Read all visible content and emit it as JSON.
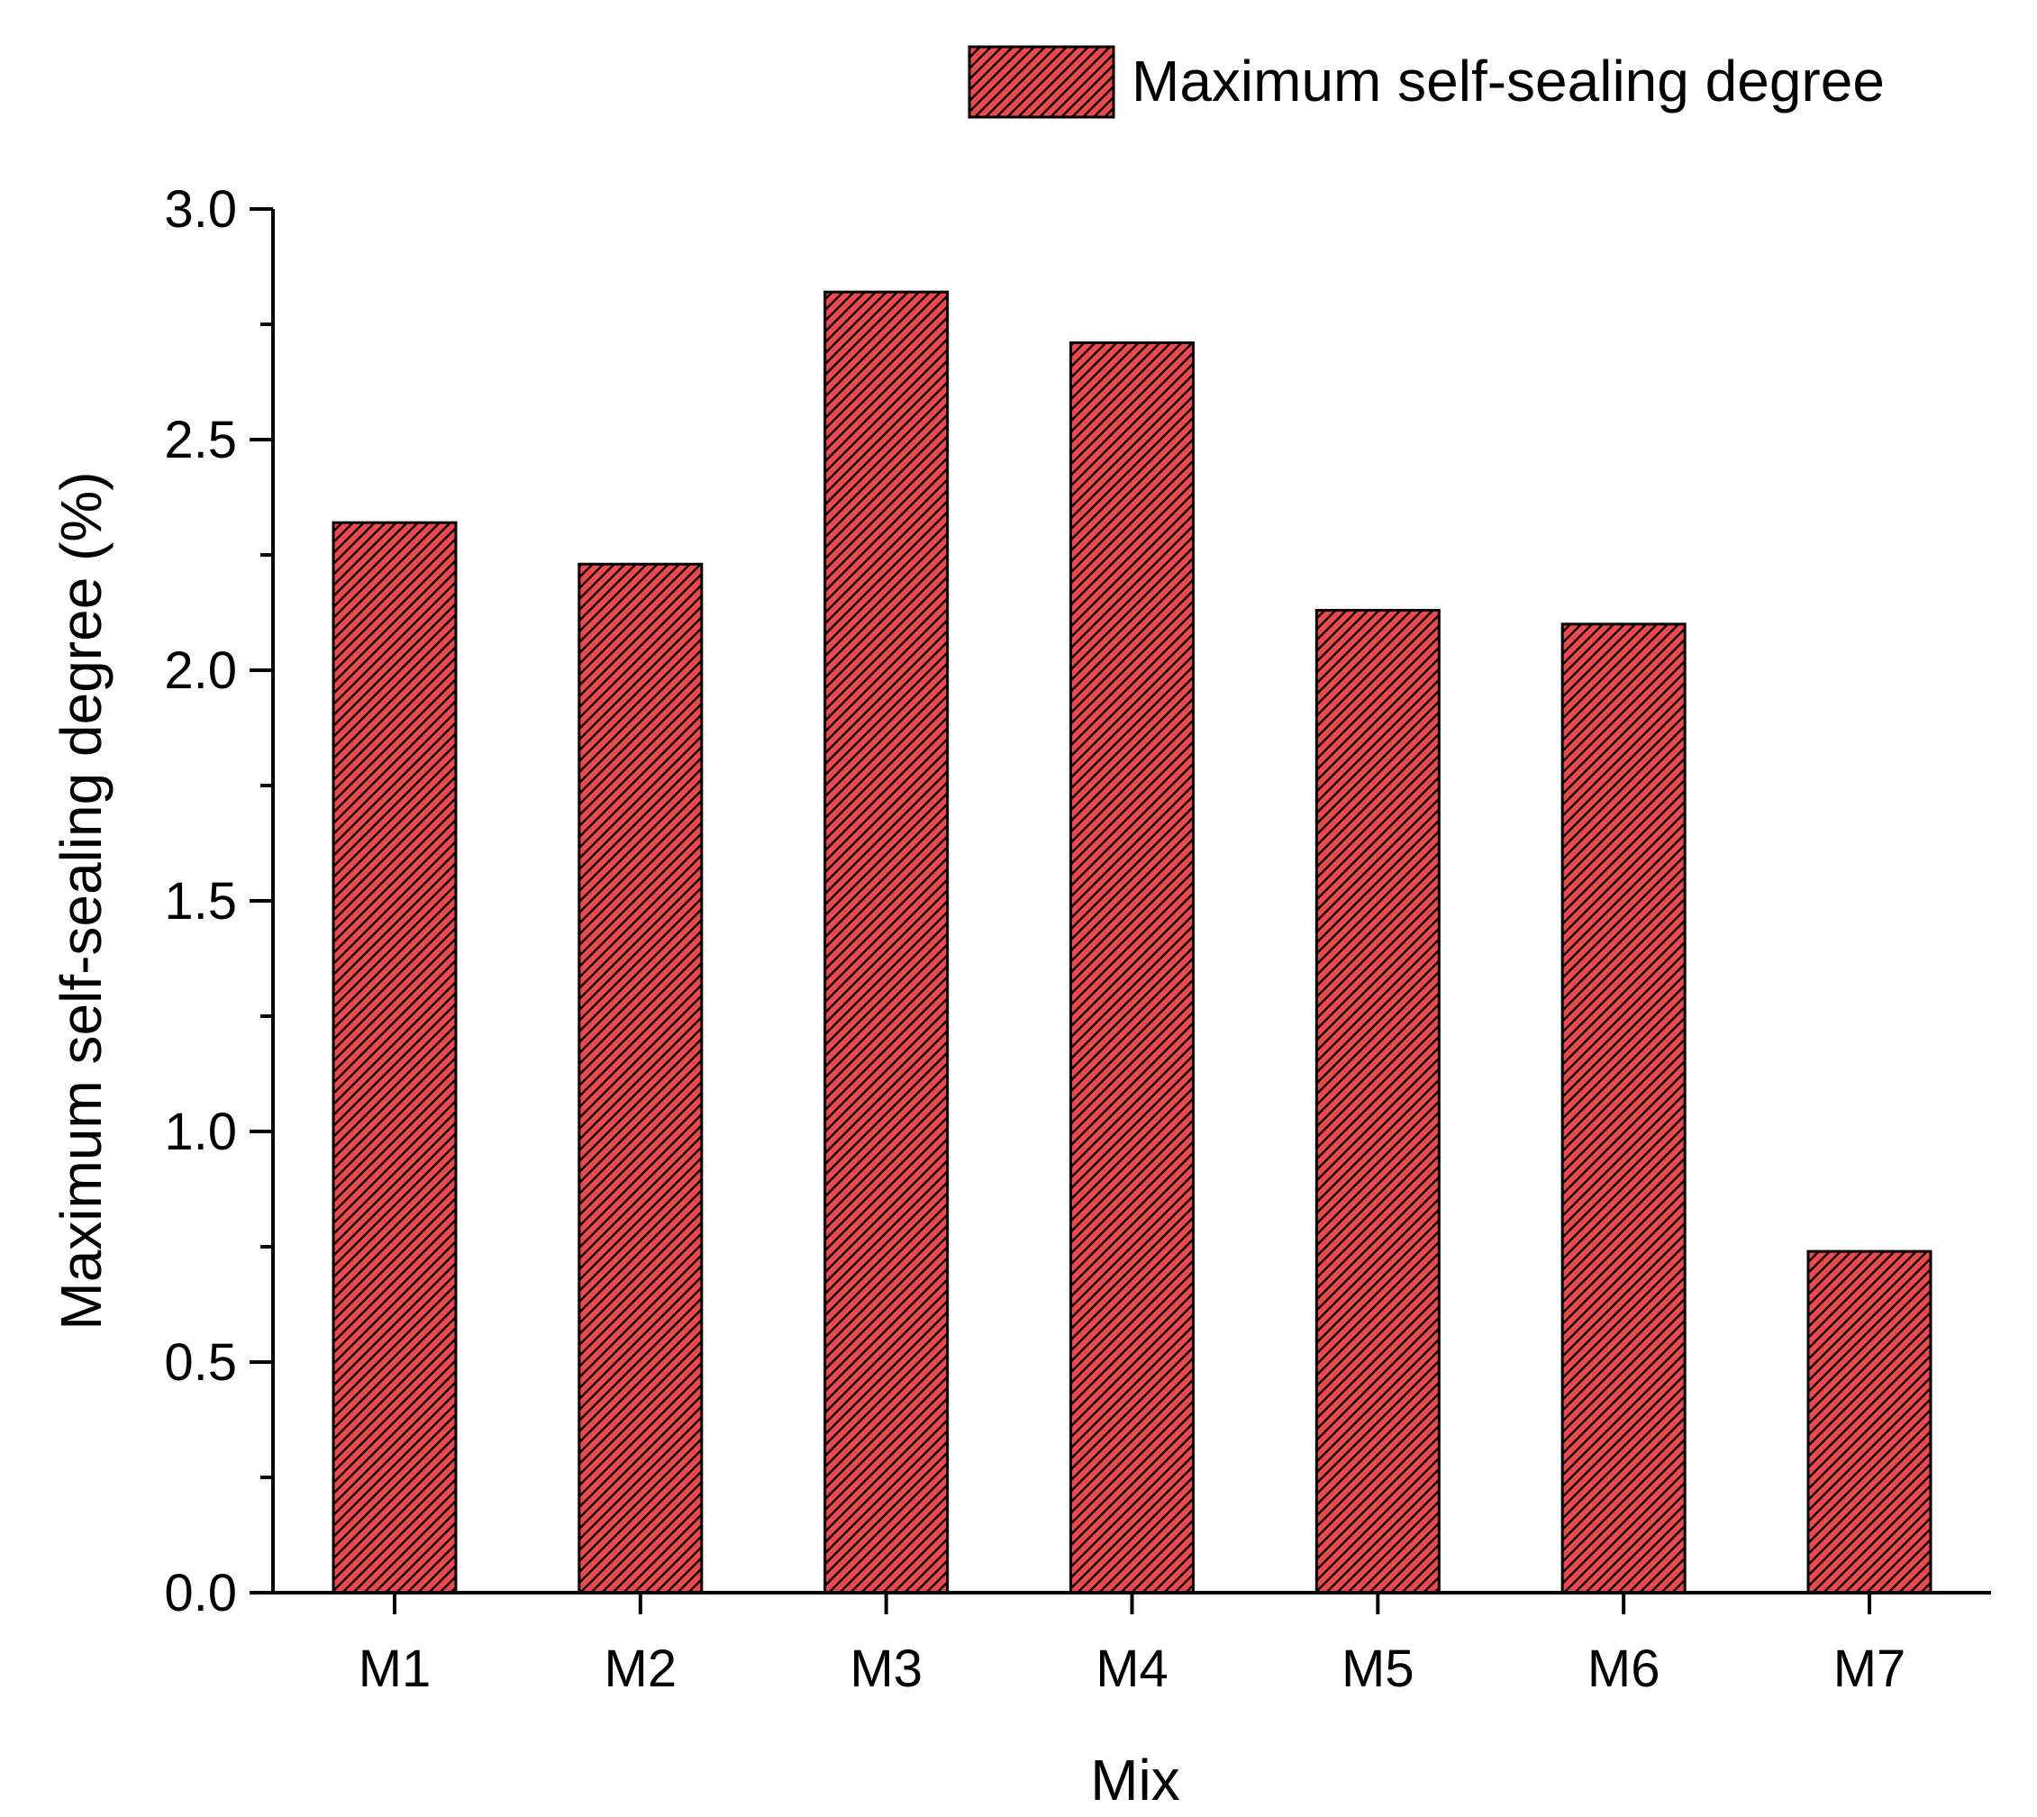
{
  "chart_data": {
    "type": "bar",
    "categories": [
      "M1",
      "M2",
      "M3",
      "M4",
      "M5",
      "M6",
      "M7"
    ],
    "series": [
      {
        "name": "Maximum self-sealing degree",
        "values": [
          2.32,
          2.23,
          2.82,
          2.71,
          2.13,
          2.1,
          0.74
        ]
      }
    ],
    "xlabel": "Mix",
    "ylabel": "Maximum self-sealing degree (%)",
    "ylim": [
      0,
      3.0
    ],
    "yticks": [
      "0.0",
      "0.5",
      "1.0",
      "1.5",
      "2.0",
      "2.5",
      "3.0"
    ],
    "grid": false,
    "legend_position": "top-right",
    "bar_fill": "#f04848",
    "bar_hatch": "diagonal",
    "bar_edge": "#000000"
  }
}
